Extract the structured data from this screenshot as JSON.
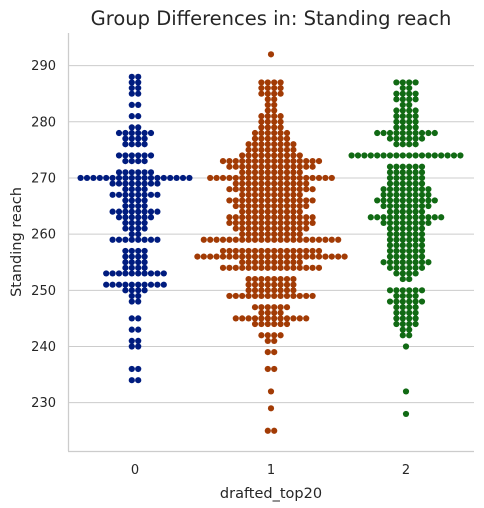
{
  "chart_data": {
    "type": "scatter",
    "subtype": "swarm",
    "title": "Group Differences in: Standing reach",
    "xlabel": "drafted_top20",
    "ylabel": "Standing reach",
    "categories": [
      "0",
      "1",
      "2"
    ],
    "ylim": [
      221.4,
      295.8
    ],
    "yticks": [
      230,
      240,
      250,
      260,
      270,
      280,
      290
    ],
    "grid": true,
    "marker_colors": [
      "#001c7f",
      "#a23b05",
      "#116a14"
    ],
    "bins": [
      {
        "category": "0",
        "counts": {
          "234": 2,
          "236": 2,
          "240": 2,
          "241": 2,
          "243": 2,
          "245": 2,
          "248": 2,
          "249": 2,
          "250": 4,
          "251": 10,
          "253": 10,
          "254": 4,
          "255": 4,
          "256": 4,
          "257": 4,
          "259": 8,
          "260": 2,
          "261": 4,
          "262": 4,
          "263": 6,
          "264": 8,
          "265": 4,
          "266": 4,
          "267": 8,
          "268": 4,
          "269": 8,
          "270": 18,
          "271": 6,
          "273": 4,
          "274": 6,
          "276": 4,
          "277": 4,
          "278": 6,
          "279": 2,
          "281": 2,
          "283": 2,
          "285": 2,
          "286": 2,
          "287": 2,
          "288": 2
        }
      },
      {
        "category": "1",
        "counts": {
          "225": 2,
          "229": 1,
          "232": 1,
          "236": 2,
          "239": 2,
          "241": 2,
          "242": 4,
          "244": 6,
          "245": 12,
          "246": 4,
          "247": 6,
          "249": 14,
          "250": 8,
          "251": 8,
          "252": 8,
          "254": 16,
          "255": 10,
          "256": 24,
          "257": 16,
          "259": 22,
          "260": 10,
          "261": 12,
          "262": 14,
          "263": 14,
          "264": 10,
          "265": 12,
          "266": 14,
          "267": 10,
          "268": 14,
          "269": 12,
          "270": 20,
          "271": 10,
          "272": 14,
          "273": 16,
          "274": 10,
          "275": 8,
          "276": 8,
          "277": 6,
          "278": 6,
          "279": 4,
          "280": 4,
          "281": 4,
          "282": 2,
          "283": 2,
          "284": 2,
          "285": 4,
          "286": 4,
          "287": 4,
          "292": 1
        }
      },
      {
        "category": "2",
        "counts": {
          "228": 1,
          "232": 1,
          "240": 1,
          "242": 2,
          "243": 2,
          "244": 4,
          "245": 4,
          "246": 4,
          "247": 4,
          "248": 6,
          "249": 4,
          "250": 6,
          "252": 2,
          "253": 4,
          "254": 6,
          "255": 8,
          "256": 6,
          "257": 6,
          "258": 6,
          "259": 6,
          "260": 6,
          "261": 6,
          "262": 8,
          "263": 12,
          "264": 6,
          "265": 8,
          "266": 10,
          "267": 8,
          "268": 8,
          "269": 6,
          "270": 6,
          "271": 6,
          "272": 6,
          "274": 18,
          "276": 4,
          "277": 6,
          "278": 10,
          "279": 4,
          "280": 4,
          "281": 4,
          "282": 4,
          "283": 2,
          "284": 4,
          "285": 4,
          "286": 2,
          "287": 4
        }
      }
    ]
  }
}
